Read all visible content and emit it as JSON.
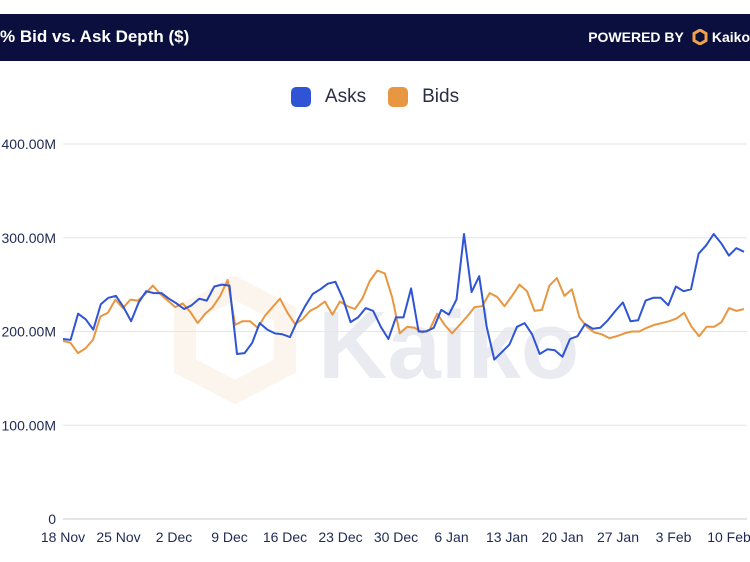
{
  "header": {
    "title": "% Bid vs. Ask Depth ($)",
    "powered_by": "POWERED BY",
    "brand": "Kaiko"
  },
  "watermark": "Kaiko",
  "colors": {
    "header_bg": "#0b0f3d",
    "asks": "#2f54d6",
    "bids": "#e8963f"
  },
  "chart_data": {
    "type": "line",
    "title": "% Bid vs. Ask Depth ($)",
    "xlabel": "",
    "ylabel": "",
    "legend_position": "top-center",
    "grid": true,
    "x_ticks": [
      "18 Nov",
      "25 Nov",
      "2 Dec",
      "9 Dec",
      "16 Dec",
      "23 Dec",
      "30 Dec",
      "6 Jan",
      "13 Jan",
      "20 Jan",
      "27 Jan",
      "3 Feb",
      "10 Feb"
    ],
    "y_ticks": [
      "0",
      "100.00M",
      "200.00M",
      "300.00M",
      "400.00M"
    ],
    "ylim": [
      0,
      400
    ],
    "y_unit": "M",
    "series": [
      {
        "name": "Asks",
        "color": "#2f54d6",
        "values": [
          192,
          191,
          219,
          213,
          202,
          229,
          236,
          238,
          226,
          211,
          231,
          243,
          241,
          241,
          235,
          230,
          224,
          228,
          235,
          233,
          248,
          250,
          249,
          176,
          177,
          188,
          209,
          202,
          198,
          197,
          194,
          212,
          227,
          240,
          245,
          251,
          253,
          235,
          210,
          215,
          225,
          222,
          205,
          192,
          215,
          215,
          246,
          200,
          200,
          204,
          223,
          218,
          234,
          304,
          242,
          259,
          205,
          170,
          178,
          186,
          205,
          209,
          197,
          176,
          181,
          180,
          173,
          192,
          195,
          208,
          203,
          204,
          212,
          222,
          231,
          211,
          212,
          233,
          236,
          236,
          228,
          248,
          243,
          245,
          283,
          292,
          304,
          294,
          281,
          289,
          285
        ]
      },
      {
        "name": "Bids",
        "color": "#e8963f",
        "values": [
          190,
          188,
          177,
          182,
          191,
          216,
          220,
          234,
          225,
          234,
          233,
          240,
          249,
          240,
          233,
          226,
          230,
          221,
          209,
          219,
          226,
          238,
          255,
          207,
          211,
          211,
          204,
          217,
          226,
          235,
          220,
          208,
          213,
          222,
          226,
          232,
          218,
          232,
          227,
          224,
          235,
          254,
          265,
          262,
          236,
          198,
          205,
          204,
          199,
          202,
          219,
          207,
          198,
          207,
          216,
          226,
          227,
          241,
          237,
          227,
          238,
          250,
          243,
          222,
          223,
          249,
          257,
          238,
          245,
          215,
          205,
          199,
          197,
          193,
          195,
          198,
          200,
          200,
          204,
          207,
          209,
          211,
          214,
          220,
          205,
          195,
          205,
          205,
          210,
          225,
          222,
          224
        ]
      }
    ]
  }
}
